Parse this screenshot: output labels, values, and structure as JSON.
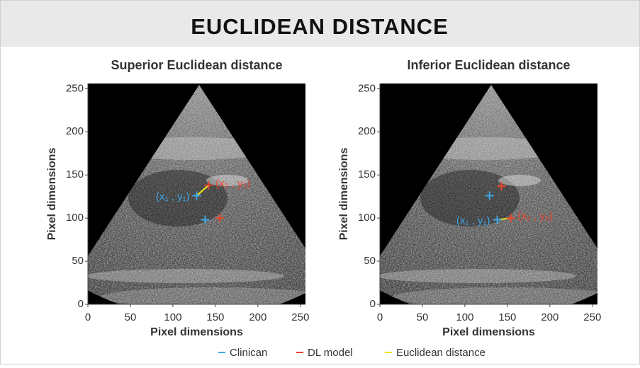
{
  "header": {
    "title": "EUCLIDEAN DISTANCE"
  },
  "legend": [
    {
      "name": "Clinican",
      "color": "#3ea6e6"
    },
    {
      "name": "DL model",
      "color": "#e8452c"
    },
    {
      "name": "Euclidean distance",
      "color": "#f2e21c"
    }
  ],
  "chart_data": [
    {
      "type": "scatter",
      "title": "Superior Euclidean distance",
      "xlabel": "Pixel dimensions",
      "ylabel": "Pixel dimensions",
      "xlim": [
        0,
        256
      ],
      "ylim": [
        0,
        256
      ],
      "xticks": [
        0,
        50,
        100,
        150,
        200,
        250
      ],
      "yticks": [
        0,
        50,
        100,
        150,
        200,
        250
      ],
      "series": [
        {
          "color": "#3ea6e6",
          "x": [
            128,
            138
          ],
          "values": [
            126,
            98
          ],
          "point_labels": [
            "(x₁ , y₁)",
            null
          ]
        },
        {
          "color": "#e8452c",
          "x": [
            142,
            155
          ],
          "values": [
            138,
            100
          ],
          "point_labels": [
            "(x₂ , y₂)",
            null
          ]
        }
      ]
    },
    {
      "type": "scatter",
      "title": "Inferior Euclidean distance",
      "xlabel": "Pixel dimensions",
      "ylabel": "Pixel dimensions",
      "xlim": [
        0,
        256
      ],
      "ylim": [
        0,
        256
      ],
      "xticks": [
        0,
        50,
        100,
        150,
        200,
        250
      ],
      "yticks": [
        0,
        50,
        100,
        150,
        200,
        250
      ],
      "series": [
        {
          "color": "#3ea6e6",
          "x": [
            129,
            138
          ],
          "values": [
            126,
            98
          ],
          "point_labels": [
            null,
            "(x₁ , y₁)"
          ]
        },
        {
          "color": "#e8452c",
          "x": [
            143,
            154
          ],
          "values": [
            137,
            100
          ],
          "point_labels": [
            null,
            "(x₂ , y₂)"
          ]
        }
      ]
    }
  ]
}
